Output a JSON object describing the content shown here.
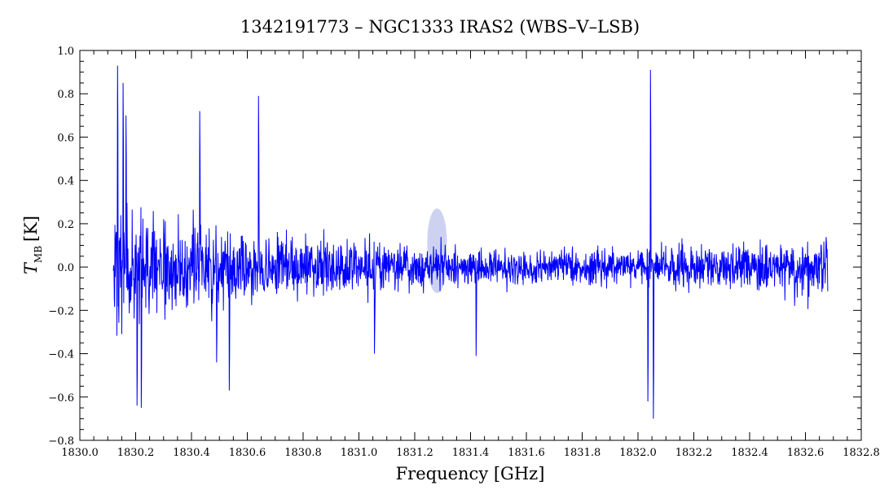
{
  "chart_data": {
    "type": "line",
    "title": "1342191773 – NGC1333 IRAS2 (WBS–V–LSB)",
    "xlabel": "Frequency [GHz]",
    "ylabel_main": "T",
    "ylabel_sub": "MB",
    "ylabel_unit": "[K]",
    "xlim": [
      1830.0,
      1832.8
    ],
    "ylim": [
      -0.8,
      1.0
    ],
    "x_ticks": [
      1830.0,
      1830.2,
      1830.4,
      1830.6,
      1830.8,
      1831.0,
      1831.2,
      1831.4,
      1831.6,
      1831.8,
      1832.0,
      1832.2,
      1832.4,
      1832.6,
      1832.8
    ],
    "x_tick_labels": [
      "1830.0",
      "1830.2",
      "1830.4",
      "1830.6",
      "1830.8",
      "1831.0",
      "1831.2",
      "1831.4",
      "1831.6",
      "1831.8",
      "1832.0",
      "1832.2",
      "1832.4",
      "1832.6",
      "1832.8"
    ],
    "y_ticks": [
      -0.8,
      -0.6,
      -0.4,
      -0.2,
      0.0,
      0.2,
      0.4,
      0.6,
      0.8,
      1.0
    ],
    "y_tick_labels": [
      "−0.8",
      "−0.6",
      "−0.4",
      "−0.2",
      "0.0",
      "0.2",
      "0.4",
      "0.6",
      "0.8",
      "1.0"
    ],
    "grid": false,
    "series_color": "#0000ff",
    "highlight_color": "#6f7fd8",
    "highlight_region": {
      "x_center": 1831.28,
      "x_halfwidth": 0.035,
      "y_peak": 0.27
    },
    "series": [
      {
        "x_range": [
          1830.12,
          1832.68
        ],
        "noise_profile": [
          {
            "x": 1830.12,
            "amplitude": 0.32
          },
          {
            "x": 1830.45,
            "amplitude": 0.22
          },
          {
            "x": 1830.8,
            "amplitude": 0.16
          },
          {
            "x": 1831.2,
            "amplitude": 0.13
          },
          {
            "x": 1831.6,
            "amplitude": 0.1
          },
          {
            "x": 1831.95,
            "amplitude": 0.1
          },
          {
            "x": 1832.3,
            "amplitude": 0.13
          },
          {
            "x": 1832.68,
            "amplitude": 0.15
          }
        ],
        "spikes": [
          {
            "x": 1830.135,
            "y": 0.93
          },
          {
            "x": 1830.155,
            "y": 0.85
          },
          {
            "x": 1830.165,
            "y": 0.7
          },
          {
            "x": 1830.205,
            "y": -0.64
          },
          {
            "x": 1830.22,
            "y": -0.65
          },
          {
            "x": 1830.43,
            "y": 0.72
          },
          {
            "x": 1830.49,
            "y": -0.44
          },
          {
            "x": 1830.535,
            "y": -0.57
          },
          {
            "x": 1830.64,
            "y": 0.79
          },
          {
            "x": 1831.055,
            "y": -0.4
          },
          {
            "x": 1831.42,
            "y": -0.41
          },
          {
            "x": 1832.045,
            "y": 0.91
          },
          {
            "x": 1832.035,
            "y": -0.62
          },
          {
            "x": 1832.055,
            "y": -0.7
          }
        ]
      }
    ]
  }
}
